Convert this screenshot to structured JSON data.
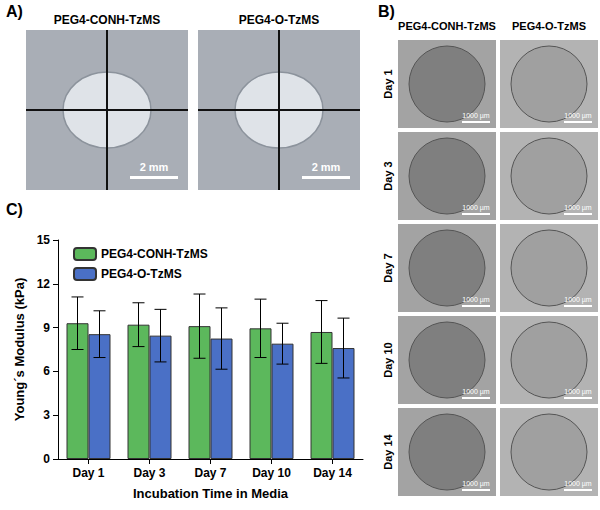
{
  "panel_a": {
    "label": "A)",
    "images": [
      {
        "title": "PEG4-CONH-TzMS",
        "scale_bar": "2 mm"
      },
      {
        "title": "PEG4-O-TzMS",
        "scale_bar": "2 mm"
      }
    ]
  },
  "panel_b": {
    "label": "B)",
    "columns": [
      "PEG4-CONH-TzMS",
      "PEG4-O-TzMS"
    ],
    "rows": [
      "Day 1",
      "Day 3",
      "Day 7",
      "Day 10",
      "Day 14"
    ],
    "scale_bar": "1000 µm"
  },
  "panel_c": {
    "label": "C)"
  },
  "chart_data": {
    "type": "bar",
    "x_label": "Incubation Time in Media",
    "y_label": "Young´s Modulus (kPa)",
    "categories": [
      "Day 1",
      "Day 3",
      "Day 7",
      "Day 10",
      "Day 14"
    ],
    "series": [
      {
        "name": "PEG4-CONH-TzMS",
        "color": "#5cb85c",
        "values": [
          9.3,
          9.2,
          9.1,
          8.95,
          8.7
        ],
        "errors": [
          1.8,
          1.5,
          2.2,
          2.0,
          2.15
        ]
      },
      {
        "name": "PEG4-O-TzMS",
        "color": "#4a70c6",
        "values": [
          8.55,
          8.45,
          8.25,
          7.9,
          7.6
        ],
        "errors": [
          1.6,
          1.8,
          2.1,
          1.4,
          2.05
        ]
      }
    ],
    "ylim": [
      0,
      15
    ],
    "yticks": [
      0,
      3,
      6,
      9,
      12,
      15
    ],
    "grid": false,
    "legend": "upper left"
  }
}
